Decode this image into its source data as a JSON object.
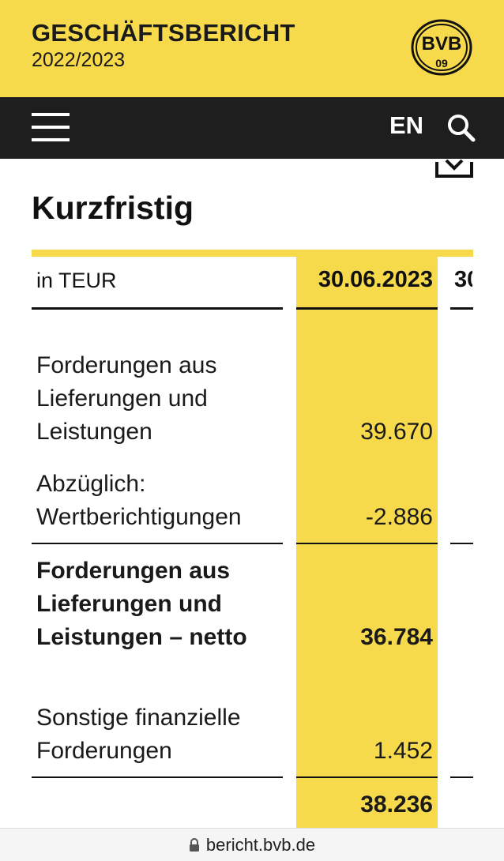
{
  "header": {
    "title": "GESCHÄFTSBERICHT",
    "year": "2022/2023",
    "logo_text_top": "BVB",
    "logo_text_bottom": "09",
    "background": "#f7d94c"
  },
  "nav": {
    "language_label": "EN",
    "background": "#1e1e1e"
  },
  "section": {
    "title": "Kurzfristig"
  },
  "table": {
    "unit_label": "in TEUR",
    "columns": [
      "30.06.2023",
      "30"
    ],
    "rows": [
      {
        "label": "Forderungen aus Lieferungen und Leistungen",
        "value": "39.670",
        "bold": false
      },
      {
        "label": "Abzüglich: Wertberichtigungen",
        "value": "-2.886",
        "bold": false
      },
      {
        "label": "Forderungen aus Lieferungen und Leistungen – netto",
        "value": "36.784",
        "bold": true
      },
      {
        "label": "Sonstige finanzielle Forderungen",
        "value": "1.452",
        "bold": false
      },
      {
        "label": "",
        "value": "38.236",
        "bold": true
      }
    ],
    "highlight_color": "#f7d94c"
  },
  "browser": {
    "url": "bericht.bvb.de"
  }
}
